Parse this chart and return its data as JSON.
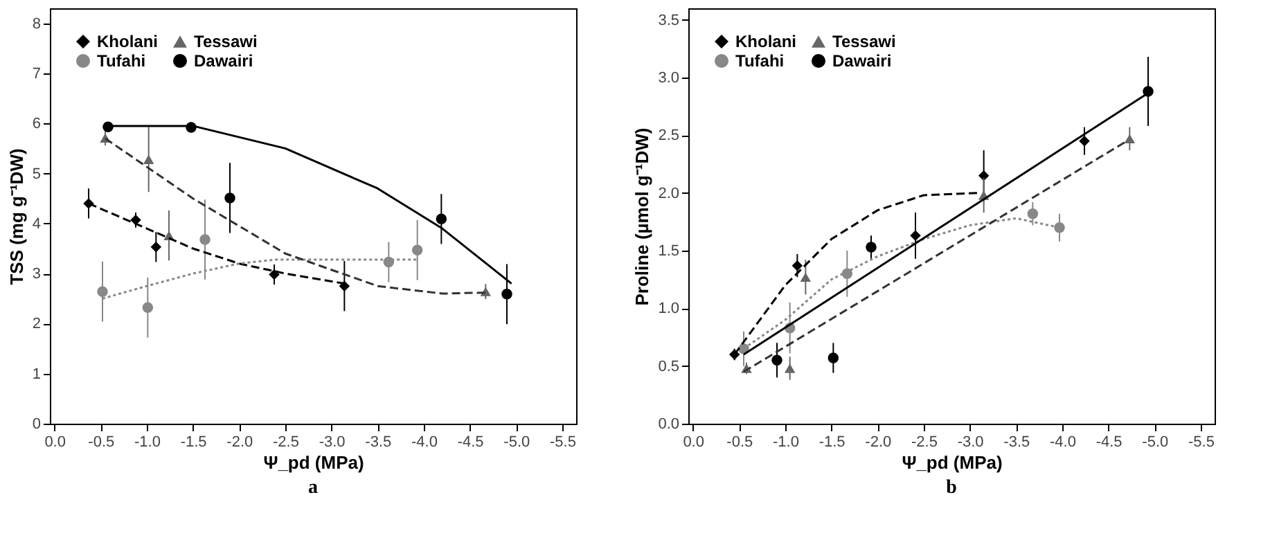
{
  "chart_data": [
    {
      "type": "scatter",
      "xlabel": "Ψ_pd (MPa)",
      "ylabel": "TSS (mg g⁻¹DW)",
      "annotations": [
        "a"
      ],
      "xlim": [
        0.05,
        -5.65
      ],
      "xticks": [
        {
          "value": 0,
          "label": "0.0"
        },
        {
          "value": -0.5,
          "label": "-0.5"
        },
        {
          "value": -1,
          "label": "-1.0"
        },
        {
          "value": -1.5,
          "label": "-1.5"
        },
        {
          "value": -2,
          "label": "-2.0"
        },
        {
          "value": -2.5,
          "label": "-2.5"
        },
        {
          "value": -3,
          "label": "-3.0"
        },
        {
          "value": -3.5,
          "label": "-3.5"
        },
        {
          "value": -4,
          "label": "-4.0"
        },
        {
          "value": -4.5,
          "label": "-4.5"
        },
        {
          "value": -5,
          "label": "-5.0"
        },
        {
          "value": -5.5,
          "label": "-5.5"
        }
      ],
      "ylim": [
        0,
        8.3
      ],
      "yticks": [
        0,
        1,
        2,
        3,
        4,
        5,
        6,
        7,
        8
      ],
      "grid": false,
      "legend": "top left",
      "series": [
        {
          "name": "Kholani",
          "color": "#000000",
          "marker": "diamond",
          "x": [
            -0.37,
            -0.88,
            -1.1,
            -2.38,
            -3.14
          ],
          "values": [
            4.4,
            4.07,
            3.53,
            2.98,
            2.75
          ],
          "errors": [
            0.3,
            0.15,
            0.3,
            0.2,
            0.5
          ]
        },
        {
          "name": "Tufahi",
          "color": "#888888",
          "marker": "circle",
          "x": [
            -0.52,
            -1.01,
            -1.63,
            -3.62,
            -3.93
          ],
          "values": [
            2.64,
            2.32,
            3.68,
            3.23,
            3.47
          ],
          "errors": [
            0.6,
            0.6,
            0.8,
            0.4,
            0.6
          ]
        },
        {
          "name": "Tessawi",
          "color": "#666666",
          "marker": "triangle",
          "x": [
            -0.55,
            -1.02,
            -1.24,
            -4.67
          ],
          "values": [
            5.71,
            5.28,
            3.76,
            2.64
          ],
          "errors": [
            0.15,
            0.65,
            0.5,
            0.15
          ]
        },
        {
          "name": "Dawairi",
          "color": "#000000",
          "marker": "circle",
          "x": [
            -0.58,
            -1.48,
            -1.9,
            -4.19,
            -4.9
          ],
          "values": [
            5.93,
            5.92,
            4.51,
            4.09,
            2.59
          ],
          "errors": [
            0.1,
            0.1,
            0.7,
            0.5,
            0.6
          ]
        },
        {
          "type": "line",
          "color": "#000000",
          "line_style": "dashed",
          "x": [
            -0.37,
            -1.0,
            -1.5,
            -2.0,
            -2.5,
            -3.14
          ],
          "values": [
            4.4,
            3.9,
            3.5,
            3.2,
            3.0,
            2.8
          ]
        },
        {
          "type": "line",
          "color": "#888888",
          "line_style": "dotted",
          "x": [
            -0.52,
            -1.0,
            -1.5,
            -2.0,
            -2.4,
            -3.93
          ],
          "values": [
            2.5,
            2.75,
            3.0,
            3.2,
            3.28,
            3.28
          ]
        },
        {
          "type": "line",
          "color": "#333333",
          "line_style": "dashed",
          "x": [
            -0.55,
            -1.5,
            -2.5,
            -3.5,
            -4.2,
            -4.7
          ],
          "values": [
            5.7,
            4.5,
            3.4,
            2.75,
            2.6,
            2.62
          ]
        },
        {
          "type": "line",
          "color": "#000000",
          "line_style": "solid",
          "x": [
            -0.58,
            -1.5,
            -2.5,
            -3.5,
            -4.2,
            -4.95
          ],
          "values": [
            5.95,
            5.95,
            5.5,
            4.7,
            3.9,
            2.8
          ]
        }
      ]
    },
    {
      "type": "scatter",
      "xlabel": "Ψ_pd (MPa)",
      "ylabel": "Proline (µmol g⁻¹DW)",
      "annotations": [
        "b"
      ],
      "xlim": [
        0.05,
        -5.65
      ],
      "xticks": [
        {
          "value": 0,
          "label": "0.0"
        },
        {
          "value": -0.5,
          "label": "-0.5"
        },
        {
          "value": -1,
          "label": "-1.0"
        },
        {
          "value": -1.5,
          "label": "-1.5"
        },
        {
          "value": -2,
          "label": "-2.0"
        },
        {
          "value": -2.5,
          "label": "-2.5"
        },
        {
          "value": -3,
          "label": "-3.0"
        },
        {
          "value": -3.5,
          "label": "-3.5"
        },
        {
          "value": -4,
          "label": "-4.0"
        },
        {
          "value": -4.5,
          "label": "-4.5"
        },
        {
          "value": -5,
          "label": "-5.0"
        },
        {
          "value": -5.5,
          "label": "-5.5"
        }
      ],
      "ylim": [
        0,
        3.6
      ],
      "yticks": [
        {
          "value": 0,
          "label": "0.0"
        },
        0.5,
        {
          "value": 1,
          "label": "1.0"
        },
        1.5,
        {
          "value": 2,
          "label": "2.0"
        },
        2.5,
        {
          "value": 3,
          "label": "3.0"
        },
        3.5
      ],
      "grid": false,
      "legend": "top left",
      "series": [
        {
          "name": "Kholani",
          "color": "#000000",
          "marker": "diamond",
          "x": [
            -0.45,
            -1.13,
            -2.41,
            -3.15,
            -4.24
          ],
          "values": [
            0.6,
            1.37,
            1.63,
            2.15,
            2.45
          ],
          "errors": [
            0.05,
            0.1,
            0.2,
            0.22,
            0.12
          ]
        },
        {
          "name": "Tufahi",
          "color": "#888888",
          "marker": "circle",
          "x": [
            -0.55,
            -1.05,
            -1.67,
            -3.68,
            -3.97
          ],
          "values": [
            0.65,
            0.83,
            1.3,
            1.82,
            1.7
          ],
          "errors": [
            0.15,
            0.22,
            0.2,
            0.1,
            0.12
          ]
        },
        {
          "name": "Tessawi",
          "color": "#666666",
          "marker": "triangle",
          "x": [
            -0.58,
            -1.05,
            -1.22,
            -3.15,
            -4.73
          ],
          "values": [
            0.48,
            0.48,
            1.27,
            1.98,
            2.47
          ],
          "errors": [
            0.05,
            0.1,
            0.15,
            0.15,
            0.1
          ]
        },
        {
          "name": "Dawairi",
          "color": "#000000",
          "marker": "circle",
          "x": [
            -0.91,
            -1.52,
            -1.93,
            -4.93
          ],
          "values": [
            0.55,
            0.57,
            1.53,
            2.88
          ],
          "errors": [
            0.15,
            0.13,
            0.1,
            0.3
          ]
        },
        {
          "type": "line",
          "color": "#000000",
          "line_style": "dashed",
          "x": [
            -0.45,
            -1.0,
            -1.5,
            -2.0,
            -2.5,
            -3.1
          ],
          "values": [
            0.6,
            1.2,
            1.6,
            1.85,
            1.98,
            2.0
          ]
        },
        {
          "type": "line",
          "color": "#888888",
          "line_style": "dotted",
          "x": [
            -0.55,
            -1.0,
            -1.5,
            -2.0,
            -2.5,
            -3.0,
            -3.5,
            -3.97
          ],
          "values": [
            0.65,
            0.9,
            1.25,
            1.45,
            1.6,
            1.72,
            1.78,
            1.7
          ]
        },
        {
          "type": "line",
          "color": "#333333",
          "line_style": "dashed",
          "x": [
            -0.55,
            -4.7
          ],
          "values": [
            0.45,
            2.45
          ]
        },
        {
          "type": "line",
          "color": "#000000",
          "line_style": "solid",
          "x": [
            -0.55,
            -4.9
          ],
          "values": [
            0.6,
            2.85
          ]
        }
      ]
    }
  ]
}
